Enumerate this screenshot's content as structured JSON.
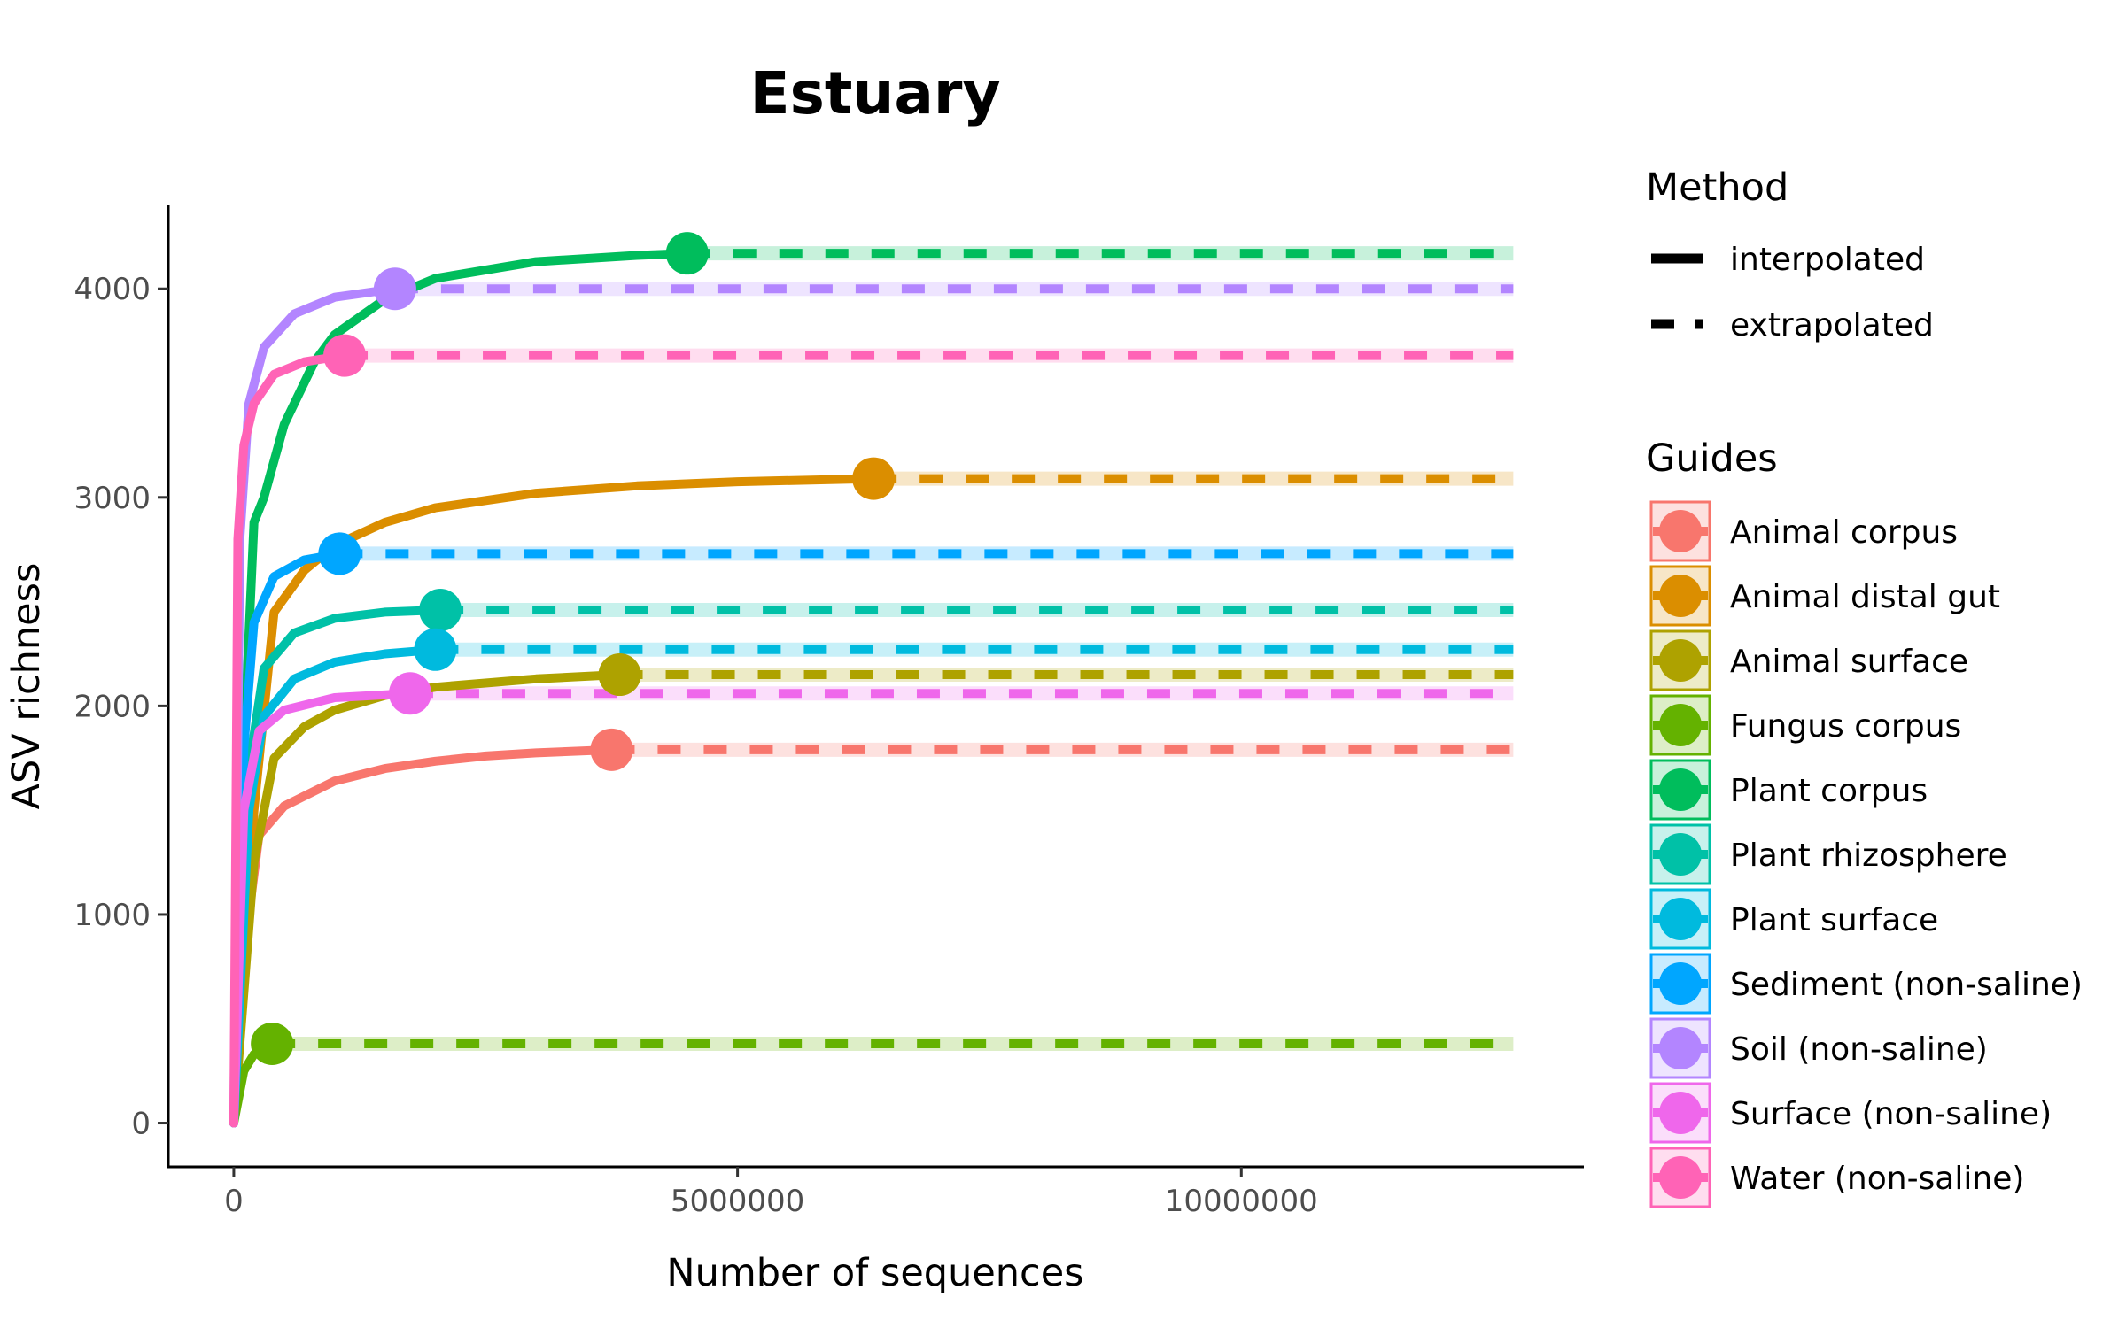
{
  "chart_data": {
    "type": "line",
    "title": "Estuary",
    "xlabel": "Number of sequences",
    "ylabel": "ASV richness",
    "xlim": [
      -650000,
      13400000
    ],
    "ylim": [
      -210,
      4400
    ],
    "x_ticks": [
      {
        "value": 0,
        "label": "0"
      },
      {
        "value": 5000000,
        "label": "5000000"
      },
      {
        "value": 10000000,
        "label": "10000000"
      }
    ],
    "y_ticks": [
      {
        "value": 0,
        "label": "0"
      },
      {
        "value": 1000,
        "label": "1000"
      },
      {
        "value": 2000,
        "label": "2000"
      },
      {
        "value": 3000,
        "label": "3000"
      },
      {
        "value": 4000,
        "label": "4000"
      }
    ],
    "grid": false,
    "extrapolate_to": 12700000,
    "method_legend": {
      "title": "Method",
      "items": [
        {
          "label": "interpolated",
          "style": "solid"
        },
        {
          "label": "extrapolated",
          "style": "dashed"
        }
      ]
    },
    "guides_legend": {
      "title": "Guides",
      "placement": "right"
    },
    "series": [
      {
        "name": "Animal corpus",
        "color": "#F8766D",
        "observed_n": 3750000,
        "observed_richness": 1790,
        "points": [
          [
            0,
            0
          ],
          [
            150000,
            1000
          ],
          [
            250000,
            1380
          ],
          [
            500000,
            1520
          ],
          [
            1000000,
            1640
          ],
          [
            1500000,
            1700
          ],
          [
            2000000,
            1735
          ],
          [
            2500000,
            1760
          ],
          [
            3000000,
            1775
          ],
          [
            3750000,
            1790
          ]
        ]
      },
      {
        "name": "Animal distal gut",
        "color": "#DB8E00",
        "observed_n": 6350000,
        "observed_richness": 3090,
        "points": [
          [
            0,
            0
          ],
          [
            200000,
            1500
          ],
          [
            400000,
            2450
          ],
          [
            700000,
            2650
          ],
          [
            1000000,
            2770
          ],
          [
            1500000,
            2880
          ],
          [
            2000000,
            2950
          ],
          [
            3000000,
            3020
          ],
          [
            4000000,
            3055
          ],
          [
            5000000,
            3075
          ],
          [
            6350000,
            3090
          ]
        ]
      },
      {
        "name": "Animal surface",
        "color": "#AEA200",
        "observed_n": 3830000,
        "observed_richness": 2150,
        "points": [
          [
            0,
            0
          ],
          [
            200000,
            1250
          ],
          [
            400000,
            1750
          ],
          [
            700000,
            1900
          ],
          [
            1000000,
            1980
          ],
          [
            1500000,
            2050
          ],
          [
            2000000,
            2090
          ],
          [
            3000000,
            2130
          ],
          [
            3830000,
            2150
          ]
        ]
      },
      {
        "name": "Fungus corpus",
        "color": "#64B200",
        "observed_n": 380000,
        "observed_richness": 380,
        "points": [
          [
            0,
            0
          ],
          [
            100000,
            250
          ],
          [
            200000,
            330
          ],
          [
            380000,
            380
          ]
        ]
      },
      {
        "name": "Plant corpus",
        "color": "#00BD5C",
        "observed_n": 4500000,
        "observed_richness": 4170,
        "points": [
          [
            0,
            0
          ],
          [
            100000,
            1800
          ],
          [
            200000,
            2880
          ],
          [
            300000,
            3000
          ],
          [
            500000,
            3350
          ],
          [
            800000,
            3650
          ],
          [
            1000000,
            3780
          ],
          [
            1500000,
            3950
          ],
          [
            2000000,
            4050
          ],
          [
            3000000,
            4130
          ],
          [
            4000000,
            4160
          ],
          [
            4500000,
            4170
          ]
        ]
      },
      {
        "name": "Plant rhizosphere",
        "color": "#00C1A7",
        "observed_n": 2050000,
        "observed_richness": 2460,
        "points": [
          [
            0,
            0
          ],
          [
            150000,
            1700
          ],
          [
            300000,
            2180
          ],
          [
            600000,
            2350
          ],
          [
            1000000,
            2420
          ],
          [
            1500000,
            2450
          ],
          [
            2050000,
            2460
          ]
        ]
      },
      {
        "name": "Plant surface",
        "color": "#00BADE",
        "observed_n": 2000000,
        "observed_richness": 2270,
        "points": [
          [
            0,
            0
          ],
          [
            150000,
            1500
          ],
          [
            300000,
            1950
          ],
          [
            600000,
            2130
          ],
          [
            1000000,
            2210
          ],
          [
            1500000,
            2250
          ],
          [
            2000000,
            2270
          ]
        ]
      },
      {
        "name": "Sediment (non-saline)",
        "color": "#00A6FF",
        "observed_n": 1050000,
        "observed_richness": 2730,
        "points": [
          [
            0,
            0
          ],
          [
            100000,
            1800
          ],
          [
            200000,
            2400
          ],
          [
            400000,
            2620
          ],
          [
            700000,
            2700
          ],
          [
            1050000,
            2730
          ]
        ]
      },
      {
        "name": "Soil (non-saline)",
        "color": "#B385FF",
        "observed_n": 1600000,
        "observed_richness": 4000,
        "points": [
          [
            0,
            0
          ],
          [
            60000,
            2800
          ],
          [
            150000,
            3450
          ],
          [
            300000,
            3720
          ],
          [
            600000,
            3880
          ],
          [
            1000000,
            3960
          ],
          [
            1600000,
            4000
          ]
        ]
      },
      {
        "name": "Surface (non-saline)",
        "color": "#EF67EB",
        "observed_n": 1750000,
        "observed_richness": 2060,
        "points": [
          [
            0,
            0
          ],
          [
            100000,
            1500
          ],
          [
            250000,
            1880
          ],
          [
            500000,
            1980
          ],
          [
            1000000,
            2040
          ],
          [
            1750000,
            2060
          ]
        ]
      },
      {
        "name": "Water (non-saline)",
        "color": "#FF63B6",
        "observed_n": 1100000,
        "observed_richness": 3680,
        "points": [
          [
            0,
            0
          ],
          [
            40000,
            2800
          ],
          [
            100000,
            3250
          ],
          [
            200000,
            3450
          ],
          [
            400000,
            3590
          ],
          [
            700000,
            3650
          ],
          [
            1100000,
            3680
          ]
        ]
      }
    ]
  }
}
